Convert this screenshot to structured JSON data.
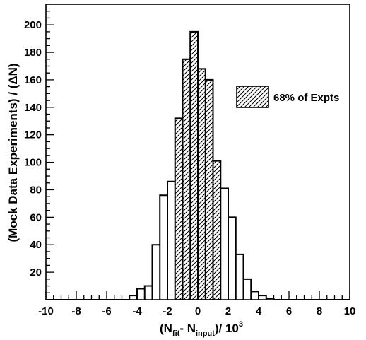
{
  "chart_data": {
    "type": "bar",
    "subtype": "histogram",
    "xlim": [
      -10,
      10
    ],
    "ylim": [
      0,
      215
    ],
    "x_ticks": [
      -10,
      -8,
      -6,
      -4,
      -2,
      0,
      2,
      4,
      6,
      8,
      10
    ],
    "y_ticks": [
      20,
      40,
      60,
      80,
      100,
      120,
      140,
      160,
      180,
      200
    ],
    "xlabel": {
      "open": "(N",
      "sub1": "fit",
      "mid": "- N",
      "sub2": "input",
      "close": ")/ 10",
      "sup": "3"
    },
    "ylabel": "(Mock Data Experiments) / (ΔN)",
    "legend": {
      "label": "68% of Expts",
      "placement": "upper-right"
    },
    "shaded_range": [
      -1.5,
      1.5
    ],
    "bin_width": 0.5,
    "bins": [
      {
        "x0": -4.5,
        "x1": -4.0,
        "value": 3
      },
      {
        "x0": -4.0,
        "x1": -3.5,
        "value": 8
      },
      {
        "x0": -3.5,
        "x1": -3.0,
        "value": 10
      },
      {
        "x0": -3.0,
        "x1": -2.5,
        "value": 40
      },
      {
        "x0": -2.5,
        "x1": -2.0,
        "value": 76
      },
      {
        "x0": -2.0,
        "x1": -1.5,
        "value": 86
      },
      {
        "x0": -1.5,
        "x1": -1.0,
        "value": 132
      },
      {
        "x0": -1.0,
        "x1": -0.5,
        "value": 175
      },
      {
        "x0": -0.5,
        "x1": 0.0,
        "value": 195
      },
      {
        "x0": 0.0,
        "x1": 0.5,
        "value": 168
      },
      {
        "x0": 0.5,
        "x1": 1.0,
        "value": 160
      },
      {
        "x0": 1.0,
        "x1": 1.5,
        "value": 101
      },
      {
        "x0": 1.5,
        "x1": 2.0,
        "value": 81
      },
      {
        "x0": 2.0,
        "x1": 2.5,
        "value": 60
      },
      {
        "x0": 2.5,
        "x1": 3.0,
        "value": 33
      },
      {
        "x0": 3.0,
        "x1": 3.5,
        "value": 15
      },
      {
        "x0": 3.5,
        "x1": 4.0,
        "value": 6
      },
      {
        "x0": 4.0,
        "x1": 4.5,
        "value": 3
      },
      {
        "x0": 4.5,
        "x1": 5.0,
        "value": 1
      }
    ]
  }
}
